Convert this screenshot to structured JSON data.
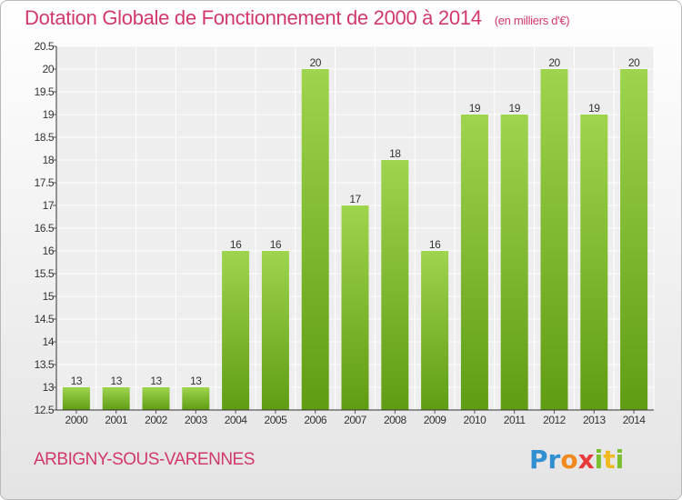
{
  "header": {
    "title": "Dotation Globale de Fonctionnement de 2000 à 2014",
    "subtitle": "(en milliers d'€)"
  },
  "footer": {
    "commune": "ARBIGNY-SOUS-VARENNES",
    "logo_letters": [
      {
        "char": "P",
        "color": "#2f8fd0"
      },
      {
        "char": "r",
        "color": "#2f8fd0"
      },
      {
        "char": "o",
        "color": "#f08a1e"
      },
      {
        "char": "x",
        "color": "#e83a3a"
      },
      {
        "char": "i",
        "color": "#7cbf2f"
      },
      {
        "char": "t",
        "color": "#f0b91e"
      },
      {
        "char": "i",
        "color": "#7cbf2f"
      }
    ]
  },
  "colors": {
    "bar_light": "#9fd44e",
    "bar_dark": "#5f9c14",
    "accent": "#d1386b"
  },
  "chart_data": {
    "type": "bar",
    "title": "Dotation Globale de Fonctionnement de 2000 à 2014",
    "subtitle": "(en milliers d'€)",
    "categories": [
      "2000",
      "2001",
      "2002",
      "2003",
      "2004",
      "2005",
      "2006",
      "2007",
      "2008",
      "2009",
      "2010",
      "2011",
      "2012",
      "2013",
      "2014"
    ],
    "values": [
      13,
      13,
      13,
      13,
      16,
      16,
      20,
      17,
      18,
      16,
      19,
      19,
      20,
      19,
      20
    ],
    "data_labels": [
      "13",
      "13",
      "13",
      "13",
      "16",
      "16",
      "20",
      "17",
      "18",
      "16",
      "19",
      "19",
      "20",
      "19",
      "20"
    ],
    "ylim": [
      12.5,
      20.5
    ],
    "yticks": [
      "12.5",
      "13",
      "13.5",
      "14",
      "14.5",
      "15",
      "15.5",
      "16",
      "16.5",
      "17",
      "17.5",
      "18",
      "18.5",
      "19",
      "19.5",
      "20",
      "20.5"
    ],
    "xlabel": "",
    "ylabel": "",
    "grid": true
  }
}
